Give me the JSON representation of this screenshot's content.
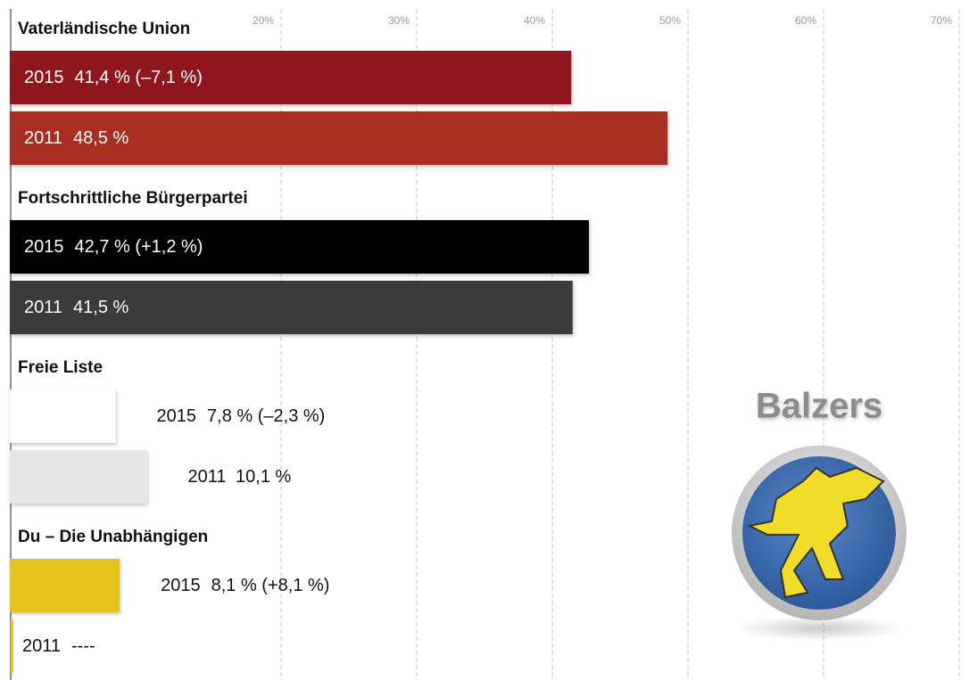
{
  "chart_data": {
    "type": "bar",
    "emblem_label": "Balzers",
    "categories": [
      "Vaterländische Union",
      "Fortschrittliche Bürgerpartei",
      "Freie Liste",
      "Du – Die Unabhängigen"
    ],
    "series": [
      {
        "name": "2015",
        "colors": [
          "#8f181c",
          "#050505",
          "#ffffff",
          "#e5c31f"
        ],
        "values": [
          41.4,
          42.7,
          7.8,
          8.1
        ],
        "value_labels": [
          "41,4 % (–7,1 %)",
          "42,7 % (+1,2 %)",
          "7,8 % (–2,3 %)",
          "8,1 % (+8,1 %)"
        ]
      },
      {
        "name": "2011",
        "colors": [
          "#a82d24",
          "#3a3a3a",
          "#e6e6e6",
          "#e8c520"
        ],
        "values": [
          48.5,
          41.5,
          10.1,
          null
        ],
        "value_labels": [
          "48,5 %",
          "41,5 %",
          "10,1 %",
          "----"
        ]
      }
    ],
    "xlim": [
      0,
      70
    ],
    "xticks": [
      {
        "value": 20,
        "label": "20%"
      },
      {
        "value": 30,
        "label": "30%"
      },
      {
        "value": 40,
        "label": "40%"
      },
      {
        "value": 50,
        "label": "50%"
      },
      {
        "value": 60,
        "label": "60%"
      },
      {
        "value": 70,
        "label": "70%"
      }
    ],
    "grid": true
  }
}
